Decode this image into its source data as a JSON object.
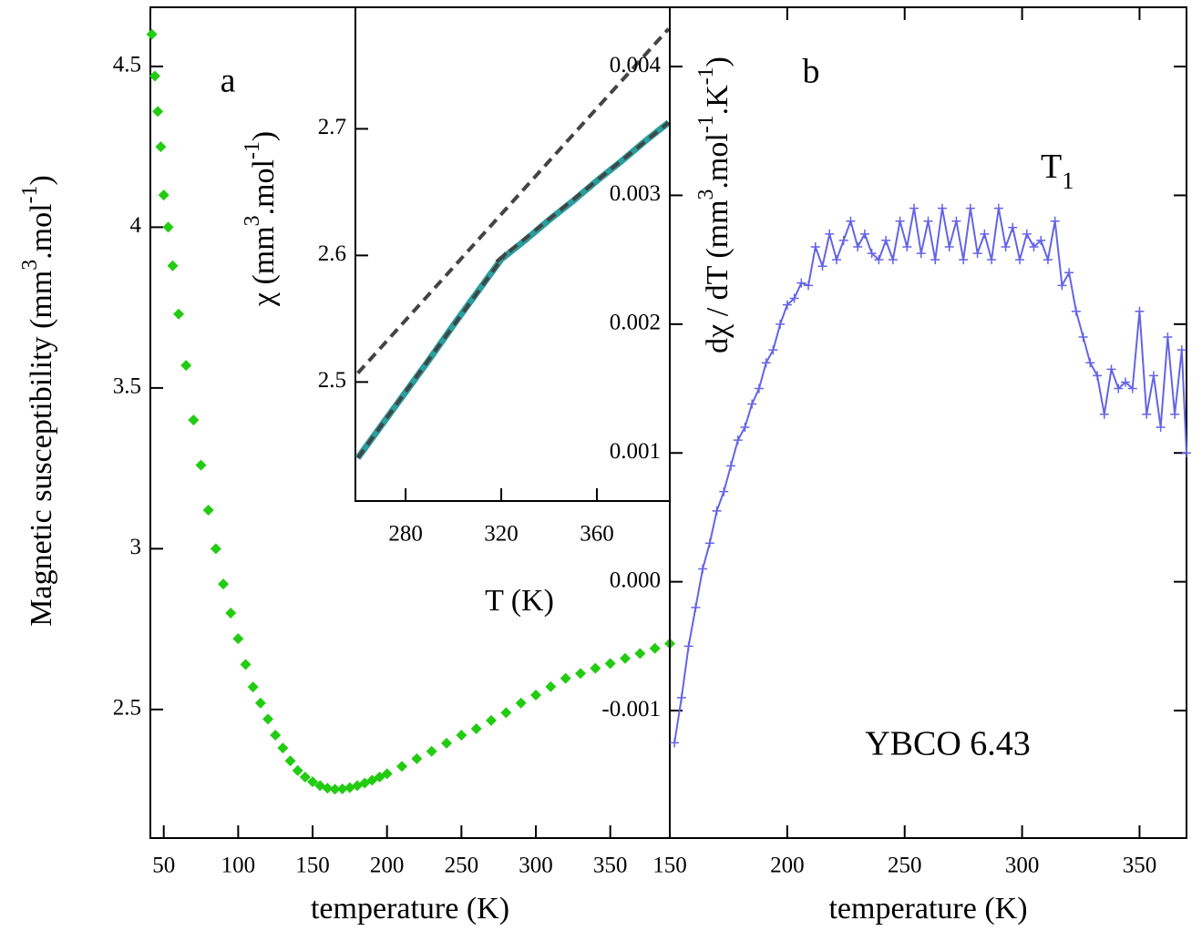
{
  "chart_data": [
    {
      "type": "scatter",
      "color": "#22cc11",
      "annotation": "a",
      "xlabel": "temperature (K)",
      "ylabel_parts": [
        "Magnetic susceptibility (mm",
        "3",
        ".mol",
        "-1",
        ")"
      ],
      "xlim": [
        41,
        390
      ],
      "ylim": [
        2.1,
        4.684
      ],
      "xticks": [
        50,
        100,
        150,
        200,
        250,
        300,
        350
      ],
      "yticks": [
        2.5,
        3.0,
        3.5,
        4.0,
        4.5
      ],
      "x": [
        42,
        44,
        46,
        48,
        50,
        53,
        56,
        60,
        65,
        70,
        75,
        80,
        85,
        90,
        95,
        100,
        105,
        110,
        115,
        120,
        125,
        130,
        135,
        140,
        145,
        150,
        155,
        160,
        165,
        170,
        175,
        180,
        185,
        190,
        195,
        200,
        210,
        220,
        230,
        240,
        250,
        260,
        270,
        280,
        290,
        300,
        310,
        320,
        330,
        340,
        350,
        360,
        370,
        380,
        390
      ],
      "values": [
        4.6,
        4.47,
        4.36,
        4.25,
        4.1,
        4.0,
        3.88,
        3.73,
        3.57,
        3.4,
        3.26,
        3.12,
        3.0,
        2.89,
        2.8,
        2.72,
        2.64,
        2.57,
        2.52,
        2.47,
        2.42,
        2.38,
        2.34,
        2.31,
        2.29,
        2.275,
        2.263,
        2.255,
        2.252,
        2.253,
        2.257,
        2.263,
        2.271,
        2.28,
        2.29,
        2.3,
        2.323,
        2.347,
        2.37,
        2.395,
        2.42,
        2.44,
        2.466,
        2.49,
        2.52,
        2.545,
        2.571,
        2.597,
        2.612,
        2.628,
        2.643,
        2.659,
        2.674,
        2.69,
        2.705
      ]
    },
    {
      "type": "line",
      "xlabel": "T (K)",
      "ylabel_parts": [
        "χ (mm",
        "3",
        ".mol",
        "-1",
        ")"
      ],
      "xlim": [
        259,
        390.5
      ],
      "ylim": [
        2.406,
        2.796
      ],
      "xticks": [
        280,
        320,
        360
      ],
      "yticks": [
        2.5,
        2.6,
        2.7
      ],
      "series": [
        {
          "color": "#2a9d9d",
          "style": "solid",
          "x": [
            260,
            270,
            280,
            290,
            300,
            310,
            320,
            330,
            340,
            350,
            360,
            370,
            380,
            390
          ],
          "values": [
            2.44,
            2.466,
            2.492,
            2.518,
            2.545,
            2.571,
            2.597,
            2.612,
            2.628,
            2.643,
            2.659,
            2.674,
            2.69,
            2.705
          ]
        },
        {
          "color": "#444444",
          "style": "dashed",
          "x": [
            260,
            390
          ],
          "values": [
            2.507,
            2.779
          ]
        },
        {
          "color": "#444444",
          "style": "dashed",
          "x": [
            260,
            322
          ],
          "values": [
            2.44,
            2.602
          ]
        },
        {
          "color": "#444444",
          "style": "dashed",
          "x": [
            318,
            390
          ],
          "values": [
            2.595,
            2.705
          ]
        }
      ]
    },
    {
      "type": "line",
      "color": "#6464e6",
      "annotation": "b",
      "label_parts": [
        "T",
        "1"
      ],
      "note": "YBCO 6.43",
      "xlabel": "temperature (K)",
      "ylabel_parts": [
        "dχ / dT (mm",
        "3",
        ".mol",
        "-1",
        ".K",
        "-1",
        ")"
      ],
      "xlim": [
        150,
        370
      ],
      "ylim": [
        -0.00199,
        0.00446
      ],
      "xticks": [
        150,
        200,
        250,
        300,
        350
      ],
      "yticks": [
        -0.001,
        {
          "value": 0,
          "label": "0.000"
        },
        0.001,
        0.002,
        0.003,
        0.004
      ],
      "x": [
        152,
        155,
        158,
        161,
        164,
        167,
        170,
        173,
        176,
        179,
        182,
        185,
        188,
        191,
        194,
        197,
        200,
        203,
        206,
        209,
        212,
        215,
        218,
        221,
        224,
        227,
        230,
        233,
        236,
        239,
        242,
        245,
        248,
        251,
        254,
        257,
        260,
        263,
        266,
        269,
        272,
        275,
        278,
        281,
        284,
        287,
        290,
        293,
        296,
        299,
        302,
        305,
        308,
        311,
        314,
        317,
        320,
        323,
        326,
        329,
        332,
        335,
        338,
        341,
        344,
        347,
        350,
        353,
        356,
        359,
        362,
        365,
        368,
        370
      ],
      "values": [
        -0.00125,
        -0.0009,
        -0.0005,
        -0.0002,
        0.0001,
        0.0003,
        0.00055,
        0.0007,
        0.0009,
        0.0011,
        0.0012,
        0.00138,
        0.0015,
        0.0017,
        0.0018,
        0.002,
        0.00215,
        0.0022,
        0.00232,
        0.0023,
        0.0026,
        0.00245,
        0.0027,
        0.0025,
        0.00265,
        0.0028,
        0.0026,
        0.0027,
        0.00255,
        0.0025,
        0.00265,
        0.0025,
        0.0028,
        0.0026,
        0.0029,
        0.00255,
        0.0028,
        0.0025,
        0.0029,
        0.0026,
        0.0028,
        0.0025,
        0.0029,
        0.00255,
        0.0027,
        0.0025,
        0.0029,
        0.0026,
        0.00275,
        0.0025,
        0.0027,
        0.0026,
        0.00265,
        0.0025,
        0.0028,
        0.0023,
        0.0024,
        0.0021,
        0.0019,
        0.0017,
        0.0016,
        0.0013,
        0.00165,
        0.0015,
        0.00155,
        0.0015,
        0.0021,
        0.0013,
        0.0016,
        0.0012,
        0.0019,
        0.0013,
        0.0018,
        0.001
      ]
    }
  ]
}
